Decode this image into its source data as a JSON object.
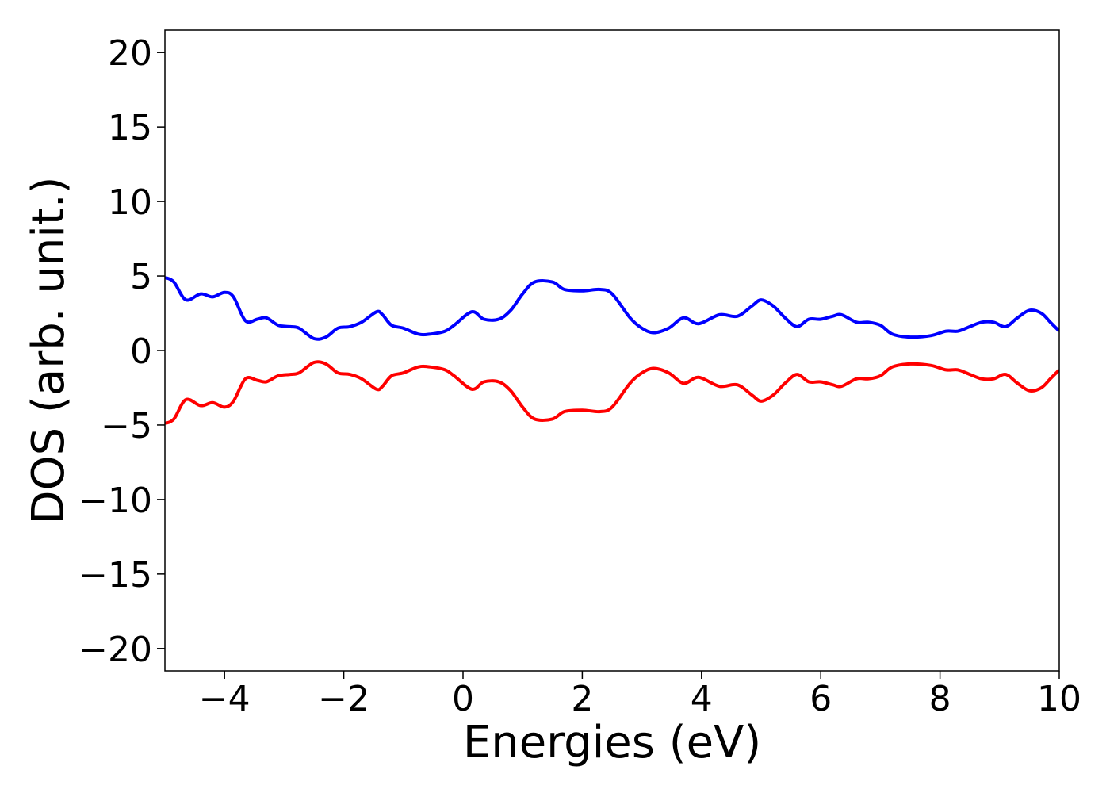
{
  "chart_data": {
    "type": "line",
    "title": "",
    "xlabel": "Energies (eV)",
    "ylabel": "DOS (arb. unit.)",
    "xlim": [
      -5,
      10
    ],
    "ylim": [
      -21.5,
      21.5
    ],
    "x_ticks": [
      -4,
      -2,
      0,
      2,
      4,
      6,
      8,
      10
    ],
    "y_ticks": [
      -20,
      -15,
      -10,
      -5,
      0,
      5,
      10,
      15,
      20
    ],
    "x_tick_labels": [
      "−4",
      "−2",
      "0",
      "2",
      "4",
      "6",
      "8",
      "10"
    ],
    "y_tick_labels": [
      "−20",
      "−15",
      "−10",
      "−5",
      "0",
      "5",
      "10",
      "15",
      "20"
    ],
    "grid": false,
    "legend": "none",
    "x": [
      -5.0,
      -4.85,
      -4.65,
      -4.4,
      -4.2,
      -4.0,
      -3.85,
      -3.65,
      -3.45,
      -3.3,
      -3.1,
      -2.9,
      -2.75,
      -2.5,
      -2.3,
      -2.1,
      -1.9,
      -1.7,
      -1.45,
      -1.35,
      -1.2,
      -1.0,
      -0.75,
      -0.55,
      -0.3,
      -0.15,
      0.15,
      0.35,
      0.6,
      0.8,
      1.0,
      1.2,
      1.5,
      1.7,
      2.0,
      2.3,
      2.5,
      2.8,
      3.0,
      3.2,
      3.45,
      3.7,
      3.95,
      4.3,
      4.6,
      4.85,
      5.0,
      5.2,
      5.4,
      5.6,
      5.8,
      6.0,
      6.2,
      6.35,
      6.6,
      6.8,
      7.0,
      7.2,
      7.5,
      7.85,
      8.1,
      8.3,
      8.5,
      8.7,
      8.9,
      9.1,
      9.3,
      9.5,
      9.7,
      9.85,
      10.0
    ],
    "series": [
      {
        "color": "#0000ff",
        "values": [
          4.9,
          4.6,
          3.4,
          3.8,
          3.6,
          3.9,
          3.6,
          2.0,
          2.1,
          2.2,
          1.7,
          1.6,
          1.5,
          0.8,
          0.9,
          1.5,
          1.6,
          1.9,
          2.6,
          2.4,
          1.7,
          1.5,
          1.1,
          1.1,
          1.3,
          1.7,
          2.6,
          2.1,
          2.1,
          2.7,
          3.8,
          4.6,
          4.6,
          4.1,
          4.0,
          4.1,
          3.8,
          2.2,
          1.5,
          1.2,
          1.5,
          2.2,
          1.8,
          2.4,
          2.3,
          3.0,
          3.4,
          3.0,
          2.2,
          1.6,
          2.1,
          2.1,
          2.3,
          2.4,
          1.9,
          1.9,
          1.7,
          1.1,
          0.9,
          1.0,
          1.3,
          1.3,
          1.6,
          1.9,
          1.9,
          1.6,
          2.2,
          2.7,
          2.5,
          1.9,
          1.3
        ]
      },
      {
        "color": "#ff0000",
        "values": [
          -4.9,
          -4.6,
          -3.3,
          -3.7,
          -3.5,
          -3.8,
          -3.4,
          -1.9,
          -2.0,
          -2.1,
          -1.7,
          -1.6,
          -1.5,
          -0.8,
          -0.9,
          -1.5,
          -1.6,
          -1.9,
          -2.6,
          -2.4,
          -1.7,
          -1.5,
          -1.1,
          -1.1,
          -1.3,
          -1.7,
          -2.6,
          -2.1,
          -2.1,
          -2.7,
          -3.8,
          -4.6,
          -4.6,
          -4.1,
          -4.0,
          -4.1,
          -3.8,
          -2.2,
          -1.5,
          -1.2,
          -1.5,
          -2.2,
          -1.8,
          -2.4,
          -2.3,
          -3.0,
          -3.4,
          -3.0,
          -2.2,
          -1.6,
          -2.1,
          -2.1,
          -2.3,
          -2.4,
          -1.9,
          -1.9,
          -1.7,
          -1.1,
          -0.9,
          -1.0,
          -1.3,
          -1.3,
          -1.6,
          -1.9,
          -1.9,
          -1.6,
          -2.2,
          -2.7,
          -2.5,
          -1.9,
          -1.3
        ]
      }
    ]
  }
}
